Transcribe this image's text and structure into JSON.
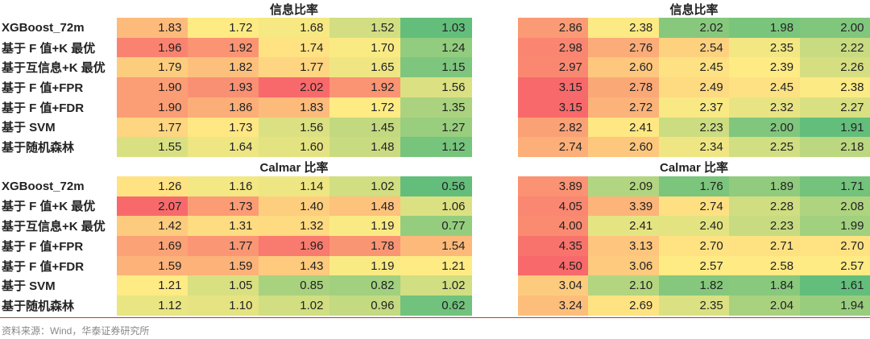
{
  "sections": [
    {
      "left_title": "信息比率",
      "right_title": "信息比率",
      "rows": [
        {
          "label": "XGBoost_72m",
          "left": [
            "1.83",
            "1.72",
            "1.68",
            "1.52",
            "1.03"
          ],
          "right": [
            "2.86",
            "2.38",
            "2.02",
            "1.98",
            "2.00"
          ]
        },
        {
          "label": "基于 F 值+K 最优",
          "left": [
            "1.96",
            "1.92",
            "1.74",
            "1.70",
            "1.24"
          ],
          "right": [
            "2.98",
            "2.76",
            "2.54",
            "2.35",
            "2.22"
          ]
        },
        {
          "label": "基于互信息+K 最优",
          "left": [
            "1.79",
            "1.82",
            "1.77",
            "1.65",
            "1.15"
          ],
          "right": [
            "2.97",
            "2.60",
            "2.45",
            "2.39",
            "2.26"
          ]
        },
        {
          "label": "基于 F 值+FPR",
          "left": [
            "1.90",
            "1.93",
            "2.02",
            "1.92",
            "1.56"
          ],
          "right": [
            "3.15",
            "2.78",
            "2.49",
            "2.45",
            "2.38"
          ]
        },
        {
          "label": "基于 F 值+FDR",
          "left": [
            "1.90",
            "1.86",
            "1.83",
            "1.72",
            "1.35"
          ],
          "right": [
            "3.15",
            "2.72",
            "2.37",
            "2.32",
            "2.27"
          ]
        },
        {
          "label": "基于 SVM",
          "left": [
            "1.77",
            "1.73",
            "1.56",
            "1.45",
            "1.27"
          ],
          "right": [
            "2.82",
            "2.41",
            "2.23",
            "2.00",
            "1.91"
          ]
        },
        {
          "label": "基于随机森林",
          "left": [
            "1.55",
            "1.64",
            "1.60",
            "1.48",
            "1.12"
          ],
          "right": [
            "2.74",
            "2.60",
            "2.34",
            "2.25",
            "2.18"
          ]
        }
      ]
    },
    {
      "left_title": "Calmar 比率",
      "right_title": "Calmar 比率",
      "rows": [
        {
          "label": "XGBoost_72m",
          "left": [
            "1.26",
            "1.16",
            "1.14",
            "1.02",
            "0.56"
          ],
          "right": [
            "3.89",
            "2.09",
            "1.76",
            "1.89",
            "1.71"
          ]
        },
        {
          "label": "基于 F 值+K 最优",
          "left": [
            "2.07",
            "1.73",
            "1.40",
            "1.48",
            "1.06"
          ],
          "right": [
            "4.05",
            "3.39",
            "2.74",
            "2.28",
            "2.08"
          ]
        },
        {
          "label": "基于互信息+K 最优",
          "left": [
            "1.42",
            "1.31",
            "1.32",
            "1.19",
            "0.77"
          ],
          "right": [
            "4.00",
            "2.41",
            "2.40",
            "2.23",
            "1.99"
          ]
        },
        {
          "label": "基于 F 值+FPR",
          "left": [
            "1.69",
            "1.77",
            "1.96",
            "1.78",
            "1.54"
          ],
          "right": [
            "4.35",
            "3.13",
            "2.70",
            "2.71",
            "2.70"
          ]
        },
        {
          "label": "基于 F 值+FDR",
          "left": [
            "1.59",
            "1.59",
            "1.43",
            "1.19",
            "1.21"
          ],
          "right": [
            "4.50",
            "3.06",
            "2.57",
            "2.58",
            "2.57"
          ]
        },
        {
          "label": "基于 SVM",
          "left": [
            "1.21",
            "1.05",
            "0.85",
            "0.82",
            "1.02"
          ],
          "right": [
            "3.04",
            "2.10",
            "1.82",
            "1.84",
            "1.61"
          ]
        },
        {
          "label": "基于随机森林",
          "left": [
            "1.12",
            "1.10",
            "1.02",
            "0.96",
            "0.62"
          ],
          "right": [
            "3.24",
            "2.69",
            "2.35",
            "2.04",
            "1.94"
          ]
        }
      ]
    }
  ],
  "source": "资料来源：Wind，华泰证券研究所"
}
